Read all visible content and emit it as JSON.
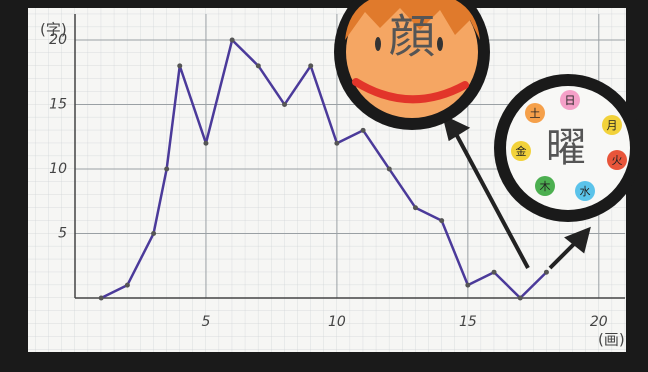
{
  "chart_data": {
    "type": "line",
    "y_label": "(字)",
    "x_label": "(画)",
    "x": [
      1,
      2,
      3,
      3.5,
      4,
      5,
      6,
      7,
      8,
      9,
      10,
      11,
      12,
      13,
      14,
      15,
      16,
      17,
      18
    ],
    "series": [
      {
        "color": "#4b3a9a",
        "values": [
          0,
          1,
          5,
          10,
          18,
          12,
          20,
          18,
          15,
          18,
          12,
          13,
          10,
          7,
          6,
          1,
          2,
          0,
          2
        ]
      }
    ],
    "xlim": [
      0,
      21
    ],
    "xticks": [
      5,
      10,
      15,
      20
    ],
    "ylim": [
      0,
      21.5
    ],
    "yticks": [
      5,
      10,
      15,
      20
    ],
    "grid": true,
    "annotations": {
      "face": "顔",
      "clock": "曜",
      "days": [
        "日",
        "月",
        "火",
        "水",
        "木",
        "金",
        "土"
      ]
    }
  }
}
